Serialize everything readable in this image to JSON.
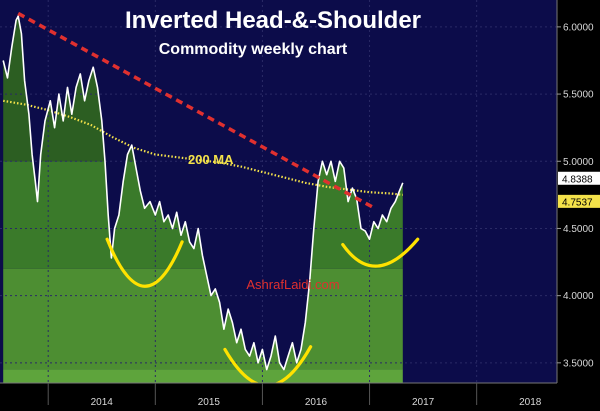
{
  "chart_data": {
    "type": "line",
    "title": "Inverted Head-&-Shoulder",
    "subtitle": "Commodity weekly chart",
    "x_tick_labels": [
      "2014",
      "2015",
      "2016",
      "2017",
      "2018"
    ],
    "y_tick_labels": [
      "3.5000",
      "4.0000",
      "4.5000",
      "5.0000",
      "5.5000",
      "6.0000"
    ],
    "ylim": [
      3.35,
      6.2
    ],
    "xlim": [
      2013.55,
      2018.75
    ],
    "grid": true,
    "series": [
      {
        "name": "",
        "type": "price",
        "points": [
          [
            2013.58,
            5.75
          ],
          [
            2013.62,
            5.62
          ],
          [
            2013.66,
            5.85
          ],
          [
            2013.7,
            6.05
          ],
          [
            2013.72,
            6.08
          ],
          [
            2013.75,
            5.95
          ],
          [
            2013.78,
            5.6
          ],
          [
            2013.82,
            5.35
          ],
          [
            2013.85,
            5.05
          ],
          [
            2013.88,
            4.85
          ],
          [
            2013.9,
            4.7
          ],
          [
            2013.93,
            5.05
          ],
          [
            2013.97,
            5.3
          ],
          [
            2014.02,
            5.45
          ],
          [
            2014.06,
            5.25
          ],
          [
            2014.1,
            5.5
          ],
          [
            2014.14,
            5.3
          ],
          [
            2014.18,
            5.55
          ],
          [
            2014.22,
            5.35
          ],
          [
            2014.26,
            5.55
          ],
          [
            2014.3,
            5.65
          ],
          [
            2014.34,
            5.45
          ],
          [
            2014.38,
            5.6
          ],
          [
            2014.42,
            5.7
          ],
          [
            2014.46,
            5.55
          ],
          [
            2014.5,
            5.3
          ],
          [
            2014.53,
            5.0
          ],
          [
            2014.56,
            4.6
          ],
          [
            2014.59,
            4.28
          ],
          [
            2014.62,
            4.5
          ],
          [
            2014.66,
            4.6
          ],
          [
            2014.7,
            4.85
          ],
          [
            2014.74,
            5.05
          ],
          [
            2014.78,
            5.12
          ],
          [
            2014.82,
            4.95
          ],
          [
            2014.86,
            4.78
          ],
          [
            2014.9,
            4.65
          ],
          [
            2014.95,
            4.7
          ],
          [
            2015.0,
            4.6
          ],
          [
            2015.04,
            4.7
          ],
          [
            2015.08,
            4.55
          ],
          [
            2015.12,
            4.6
          ],
          [
            2015.16,
            4.5
          ],
          [
            2015.2,
            4.62
          ],
          [
            2015.24,
            4.45
          ],
          [
            2015.28,
            4.55
          ],
          [
            2015.32,
            4.4
          ],
          [
            2015.36,
            4.35
          ],
          [
            2015.4,
            4.5
          ],
          [
            2015.44,
            4.3
          ],
          [
            2015.48,
            4.15
          ],
          [
            2015.52,
            4.0
          ],
          [
            2015.56,
            4.05
          ],
          [
            2015.6,
            3.95
          ],
          [
            2015.64,
            3.75
          ],
          [
            2015.68,
            3.9
          ],
          [
            2015.72,
            3.8
          ],
          [
            2015.76,
            3.65
          ],
          [
            2015.8,
            3.75
          ],
          [
            2015.84,
            3.6
          ],
          [
            2015.88,
            3.55
          ],
          [
            2015.92,
            3.65
          ],
          [
            2015.96,
            3.5
          ],
          [
            2016.0,
            3.6
          ],
          [
            2016.04,
            3.45
          ],
          [
            2016.08,
            3.55
          ],
          [
            2016.12,
            3.7
          ],
          [
            2016.16,
            3.5
          ],
          [
            2016.2,
            3.45
          ],
          [
            2016.24,
            3.55
          ],
          [
            2016.28,
            3.65
          ],
          [
            2016.32,
            3.5
          ],
          [
            2016.36,
            3.6
          ],
          [
            2016.4,
            3.8
          ],
          [
            2016.44,
            4.1
          ],
          [
            2016.48,
            4.5
          ],
          [
            2016.52,
            4.85
          ],
          [
            2016.56,
            5.0
          ],
          [
            2016.6,
            4.9
          ],
          [
            2016.64,
            5.0
          ],
          [
            2016.68,
            4.85
          ],
          [
            2016.72,
            5.0
          ],
          [
            2016.76,
            4.95
          ],
          [
            2016.8,
            4.7
          ],
          [
            2016.84,
            4.8
          ],
          [
            2016.88,
            4.72
          ],
          [
            2016.92,
            4.5
          ],
          [
            2016.96,
            4.48
          ],
          [
            2017.0,
            4.42
          ],
          [
            2017.04,
            4.55
          ],
          [
            2017.08,
            4.5
          ],
          [
            2017.12,
            4.6
          ],
          [
            2017.16,
            4.55
          ],
          [
            2017.2,
            4.65
          ],
          [
            2017.24,
            4.7
          ],
          [
            2017.28,
            4.78
          ],
          [
            2017.31,
            4.84
          ]
        ]
      },
      {
        "name": "200 MA",
        "type": "moving-average",
        "points": [
          [
            2013.58,
            5.45
          ],
          [
            2013.8,
            5.42
          ],
          [
            2014.0,
            5.38
          ],
          [
            2014.2,
            5.33
          ],
          [
            2014.4,
            5.27
          ],
          [
            2014.6,
            5.18
          ],
          [
            2014.8,
            5.1
          ],
          [
            2015.0,
            5.05
          ],
          [
            2015.2,
            5.03
          ],
          [
            2015.4,
            5.01
          ],
          [
            2015.6,
            4.99
          ],
          [
            2015.8,
            4.96
          ],
          [
            2016.0,
            4.92
          ],
          [
            2016.2,
            4.88
          ],
          [
            2016.4,
            4.84
          ],
          [
            2016.6,
            4.81
          ],
          [
            2016.8,
            4.79
          ],
          [
            2017.0,
            4.77
          ],
          [
            2017.2,
            4.76
          ],
          [
            2017.31,
            4.75
          ]
        ]
      }
    ],
    "last_value_labels": [
      {
        "series": "price",
        "text": "4.8388"
      },
      {
        "series": "200 MA",
        "text": "4.7537"
      }
    ],
    "annotations": [
      {
        "text": "200 MA",
        "type": "label"
      },
      {
        "text": "AshrafLaidi.com",
        "type": "watermark"
      }
    ],
    "trendline": {
      "from": [
        2013.72,
        6.1
      ],
      "to": [
        2017.05,
        4.65
      ],
      "color": "#e0302f",
      "style": "dashed"
    },
    "pattern_arcs": [
      {
        "name": "left-shoulder",
        "from": [
          2014.55,
          4.42
        ],
        "bottom": [
          2014.9,
          4.07
        ],
        "to": [
          2015.25,
          4.4
        ]
      },
      {
        "name": "head",
        "from": [
          2015.65,
          3.6
        ],
        "bottom": [
          2016.05,
          3.33
        ],
        "to": [
          2016.45,
          3.62
        ]
      },
      {
        "name": "right-shoulder",
        "from": [
          2016.75,
          4.38
        ],
        "bottom": [
          2017.05,
          4.22
        ],
        "to": [
          2017.45,
          4.42
        ]
      }
    ],
    "colors": {
      "plot_background": "#0c0c4a",
      "price_line": "#ffffff",
      "ma_line": "#f4e24a",
      "trendline": "#e0302f",
      "arcs": "#ffe200",
      "area_fill": "#4a8a2a",
      "watermark": "#e0302f",
      "title": "#ffffff"
    }
  }
}
